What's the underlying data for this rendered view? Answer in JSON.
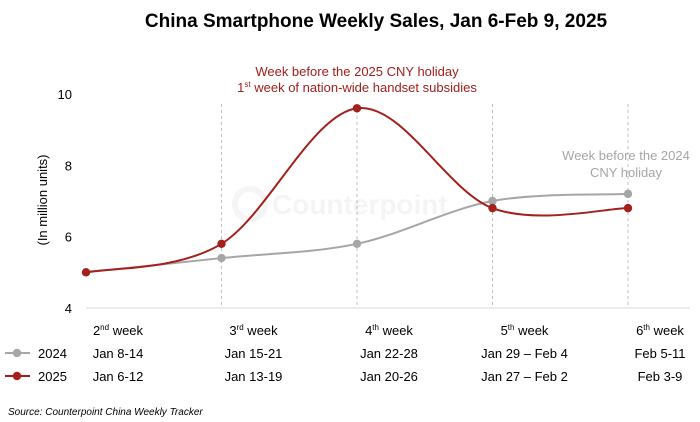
{
  "chart_data": {
    "type": "line",
    "title": "China Smartphone Weekly Sales, Jan 6-Feb 9, 2025",
    "ylabel": "(In million units)",
    "ylim": [
      4,
      10
    ],
    "yticks": [
      "4",
      "6",
      "8",
      "10"
    ],
    "grid": false,
    "weeks": [
      {
        "num": "2",
        "sup": "nd",
        "word": "week"
      },
      {
        "num": "3",
        "sup": "rd",
        "word": "week"
      },
      {
        "num": "4",
        "sup": "th",
        "word": "week"
      },
      {
        "num": "5",
        "sup": "th",
        "word": "week"
      },
      {
        "num": "6",
        "sup": "th",
        "word": "week"
      }
    ],
    "series": [
      {
        "name": "2024",
        "color": "#a6a6a6",
        "dates": [
          "Jan 8-14",
          "Jan 15-21",
          "Jan 22-28",
          "Jan 29 – Feb 4",
          "Feb 5-11"
        ],
        "values": [
          5.0,
          5.4,
          5.8,
          7.0,
          7.2
        ]
      },
      {
        "name": "2025",
        "color": "#a3201c",
        "dates": [
          "Jan 6-12",
          "Jan 13-19",
          "Jan 20-26",
          "Jan 27 – Feb 2",
          "Feb 3-9"
        ],
        "values": [
          5.0,
          5.8,
          9.6,
          6.8,
          6.8
        ]
      }
    ],
    "annotations": [
      {
        "series": "2025",
        "color": "#a3201c",
        "line1": "Week before the 2025 CNY holiday",
        "line2_num": "1",
        "line2_sup": "st",
        "line2_rest": " week of nation-wide handset subsidies"
      },
      {
        "series": "2024",
        "color": "#a6a6a6",
        "line1": "Week before the 2024",
        "line2": "CNY holiday"
      }
    ],
    "watermark": "Counterpoint",
    "source": "Source: Counterpoint China Weekly Tracker"
  }
}
